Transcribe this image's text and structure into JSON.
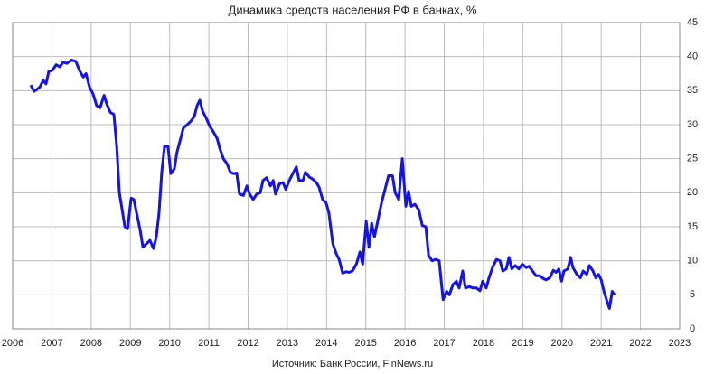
{
  "chart_data": {
    "type": "line",
    "title": "Динамика средств населения РФ в банках, %",
    "source": "Источник: Банк России, FinNews.ru",
    "xlim": [
      2006,
      2023
    ],
    "ylim": [
      0,
      45
    ],
    "xticks": [
      2006,
      2007,
      2008,
      2009,
      2010,
      2011,
      2012,
      2013,
      2014,
      2015,
      2016,
      2017,
      2018,
      2019,
      2020,
      2021,
      2022,
      2023
    ],
    "yticks": [
      0,
      5,
      10,
      15,
      20,
      25,
      30,
      35,
      40,
      45
    ],
    "grid": true,
    "series": [
      {
        "color": "#1414e6",
        "x": [
          2006.46,
          2006.55,
          2006.69,
          2006.78,
          2006.85,
          2006.92,
          2007.01,
          2007.11,
          2007.2,
          2007.29,
          2007.38,
          2007.5,
          2007.61,
          2007.7,
          2007.8,
          2007.87,
          2007.96,
          2008.05,
          2008.14,
          2008.23,
          2008.33,
          2008.4,
          2008.49,
          2008.58,
          2008.65,
          2008.72,
          2008.79,
          2008.86,
          2008.93,
          2009.02,
          2009.09,
          2009.16,
          2009.25,
          2009.32,
          2009.41,
          2009.5,
          2009.59,
          2009.66,
          2009.73,
          2009.8,
          2009.87,
          2009.96,
          2010.03,
          2010.12,
          2010.19,
          2010.26,
          2010.35,
          2010.45,
          2010.54,
          2010.63,
          2010.7,
          2010.77,
          2010.84,
          2010.93,
          2011.02,
          2011.11,
          2011.21,
          2011.28,
          2011.37,
          2011.46,
          2011.55,
          2011.64,
          2011.71,
          2011.78,
          2011.88,
          2011.97,
          2012.04,
          2012.13,
          2012.22,
          2012.31,
          2012.38,
          2012.47,
          2012.57,
          2012.64,
          2012.7,
          2012.8,
          2012.89,
          2012.96,
          2013.05,
          2013.14,
          2013.23,
          2013.3,
          2013.4,
          2013.46,
          2013.56,
          2013.65,
          2013.74,
          2013.81,
          2013.9,
          2013.99,
          2014.06,
          2014.16,
          2014.25,
          2014.32,
          2014.41,
          2014.5,
          2014.57,
          2014.66,
          2014.76,
          2014.85,
          2014.92,
          2015.01,
          2015.08,
          2015.15,
          2015.22,
          2015.31,
          2015.4,
          2015.49,
          2015.58,
          2015.68,
          2015.75,
          2015.84,
          2015.93,
          2016.02,
          2016.09,
          2016.16,
          2016.25,
          2016.35,
          2016.44,
          2016.53,
          2016.6,
          2016.69,
          2016.78,
          2016.87,
          2016.97,
          2017.06,
          2017.13,
          2017.22,
          2017.31,
          2017.38,
          2017.47,
          2017.54,
          2017.64,
          2017.73,
          2017.82,
          2017.91,
          2017.98,
          2018.07,
          2018.14,
          2018.23,
          2018.33,
          2018.42,
          2018.49,
          2018.58,
          2018.65,
          2018.72,
          2018.81,
          2018.9,
          2018.99,
          2019.09,
          2019.16,
          2019.25,
          2019.34,
          2019.43,
          2019.52,
          2019.59,
          2019.69,
          2019.78,
          2019.85,
          2019.92,
          2019.99,
          2020.05,
          2020.15,
          2020.22,
          2020.28,
          2020.38,
          2020.47,
          2020.54,
          2020.63,
          2020.7,
          2020.79,
          2020.86,
          2020.93,
          2021.0,
          2021.07,
          2021.14,
          2021.21,
          2021.28,
          2021.34
        ],
        "values": [
          35.8,
          34.9,
          35.5,
          36.5,
          36.0,
          37.8,
          38.0,
          38.8,
          38.5,
          39.2,
          39.0,
          39.5,
          39.3,
          38.0,
          37.0,
          37.5,
          35.5,
          34.5,
          32.8,
          32.5,
          34.3,
          33.0,
          31.8,
          31.5,
          27,
          20,
          17.5,
          15.0,
          14.7,
          19.2,
          19.0,
          17.0,
          14.5,
          12.0,
          12.5,
          13.0,
          11.8,
          13.5,
          17,
          23,
          26.8,
          26.8,
          22.8,
          23.5,
          26,
          27.5,
          29.5,
          30.0,
          30.5,
          31.2,
          32.8,
          33.6,
          32.0,
          31.0,
          29.8,
          29.0,
          28.0,
          26.5,
          25.0,
          24.3,
          23.0,
          22.8,
          22.9,
          19.8,
          19.6,
          21.0,
          19.8,
          19.0,
          19.8,
          20.0,
          21.8,
          22.2,
          21.0,
          21.8,
          19.8,
          21.3,
          21.5,
          20.5,
          21.8,
          22.8,
          23.8,
          21.8,
          21.8,
          23.0,
          22.3,
          22.0,
          21.5,
          20.8,
          19.0,
          18.5,
          17.0,
          12.5,
          11.0,
          10.2,
          8.2,
          8.4,
          8.3,
          8.5,
          9.5,
          11.3,
          9.5,
          15.8,
          12.0,
          15.5,
          13.5,
          16,
          18.5,
          20.5,
          22.5,
          22.5,
          20.0,
          19.0,
          25.0,
          18.0,
          20.2,
          18.0,
          18.3,
          17.5,
          15.2,
          15.0,
          10.8,
          10.0,
          10.2,
          10.0,
          4.3,
          5.5,
          5.0,
          6.5,
          7.0,
          6.0,
          8.5,
          6.0,
          6.2,
          6.0,
          6.0,
          5.6,
          7.0,
          6.0,
          7.5,
          9.0,
          10.2,
          10.0,
          8.5,
          8.8,
          10.5,
          8.8,
          9.3,
          8.8,
          9.5,
          9.0,
          9.2,
          8.5,
          7.8,
          7.8,
          7.4,
          7.2,
          7.5,
          8.6,
          8.3,
          8.8,
          7.0,
          8.5,
          8.8,
          10.5,
          9.0,
          8.0,
          7.5,
          8.5,
          8.0,
          9.3,
          8.5,
          7.5,
          8.0,
          7.2,
          5.5,
          4.2,
          3.0,
          5.5,
          5.0
        ]
      }
    ]
  }
}
